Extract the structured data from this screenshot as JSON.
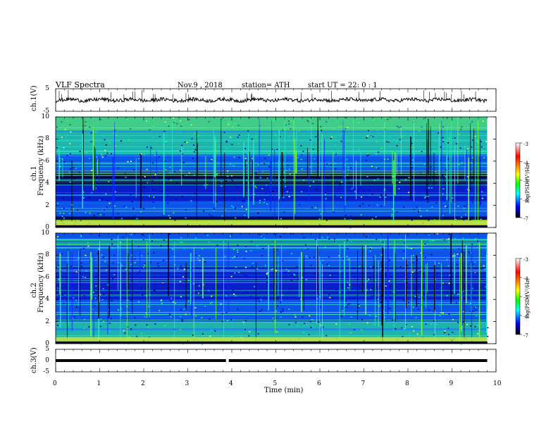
{
  "header": {
    "title": "VLF  Spectra",
    "date": "Nov.9  , 2018",
    "station": "station= ATH",
    "start_ut": "start  UT  =   22: 0  : 1"
  },
  "colorbar": {
    "label": "log(PSD)(V²/Hz)",
    "ticks": [
      "-3",
      "-4",
      "-5",
      "-6",
      "-7"
    ],
    "colors": [
      "#ffffff",
      "#ff0000",
      "#ffff00",
      "#00ff00",
      "#00ffff",
      "#0000ff",
      "#000000"
    ]
  },
  "chart_data": [
    {
      "type": "line",
      "name": "ch.1 waveform",
      "ylabel": "ch.1(V)",
      "ylim": [
        -5,
        5
      ],
      "yticks": [
        "5",
        "-5"
      ],
      "x_range_min": [
        0,
        9.8
      ],
      "level": 0,
      "description_values": {
        "baseline": 0
      }
    },
    {
      "type": "heatmap",
      "name": "ch.1 spectrogram",
      "ylabel": "ch.1\nFrequency (kHz)",
      "ylabel_line1": "ch.1",
      "ylabel_line2": "Frequency (kHz)",
      "ylim": [
        0,
        10
      ],
      "yticks": [
        "10",
        "8",
        "6",
        "4",
        "2",
        "0"
      ],
      "x_range_min": [
        0,
        9.8
      ],
      "bands_khz": [
        [
          0.1,
          0.7,
          "yellow-green"
        ],
        [
          1.0,
          2.4,
          "blue-cyan"
        ],
        [
          2.4,
          3.8,
          "blue"
        ],
        [
          3.8,
          5.0,
          "dark-blue"
        ],
        [
          5.0,
          6.6,
          "blue-cyan"
        ],
        [
          6.6,
          10.0,
          "cyan-green"
        ]
      ]
    },
    {
      "type": "heatmap",
      "name": "ch.2 spectrogram",
      "ylabel_line1": "ch.2",
      "ylabel_line2": "Frequency (kHz)",
      "ylim": [
        0,
        10
      ],
      "yticks": [
        "10",
        "8",
        "6",
        "4",
        "2",
        "0"
      ],
      "x_range_min": [
        0,
        9.8
      ],
      "bands_khz": [
        [
          0.1,
          2.0,
          "cyan-green"
        ],
        [
          2.0,
          4.0,
          "blue-cyan"
        ],
        [
          4.0,
          7.0,
          "blue"
        ],
        [
          7.0,
          10.0,
          "blue-cyan"
        ]
      ]
    },
    {
      "type": "line",
      "name": "ch.3 waveform",
      "ylabel": "ch.3(V)",
      "ylim": [
        -5,
        5
      ],
      "yticks": [
        "5",
        "0",
        "-5"
      ],
      "x_range_min": [
        0,
        9.8
      ],
      "level": 0,
      "gap_at_min": 3.9
    }
  ],
  "xaxis": {
    "label": "Time  (min)",
    "ticks": [
      "0",
      "1",
      "2",
      "3",
      "4",
      "5",
      "6",
      "7",
      "8",
      "9",
      "10"
    ],
    "xlim": [
      0,
      10
    ]
  }
}
